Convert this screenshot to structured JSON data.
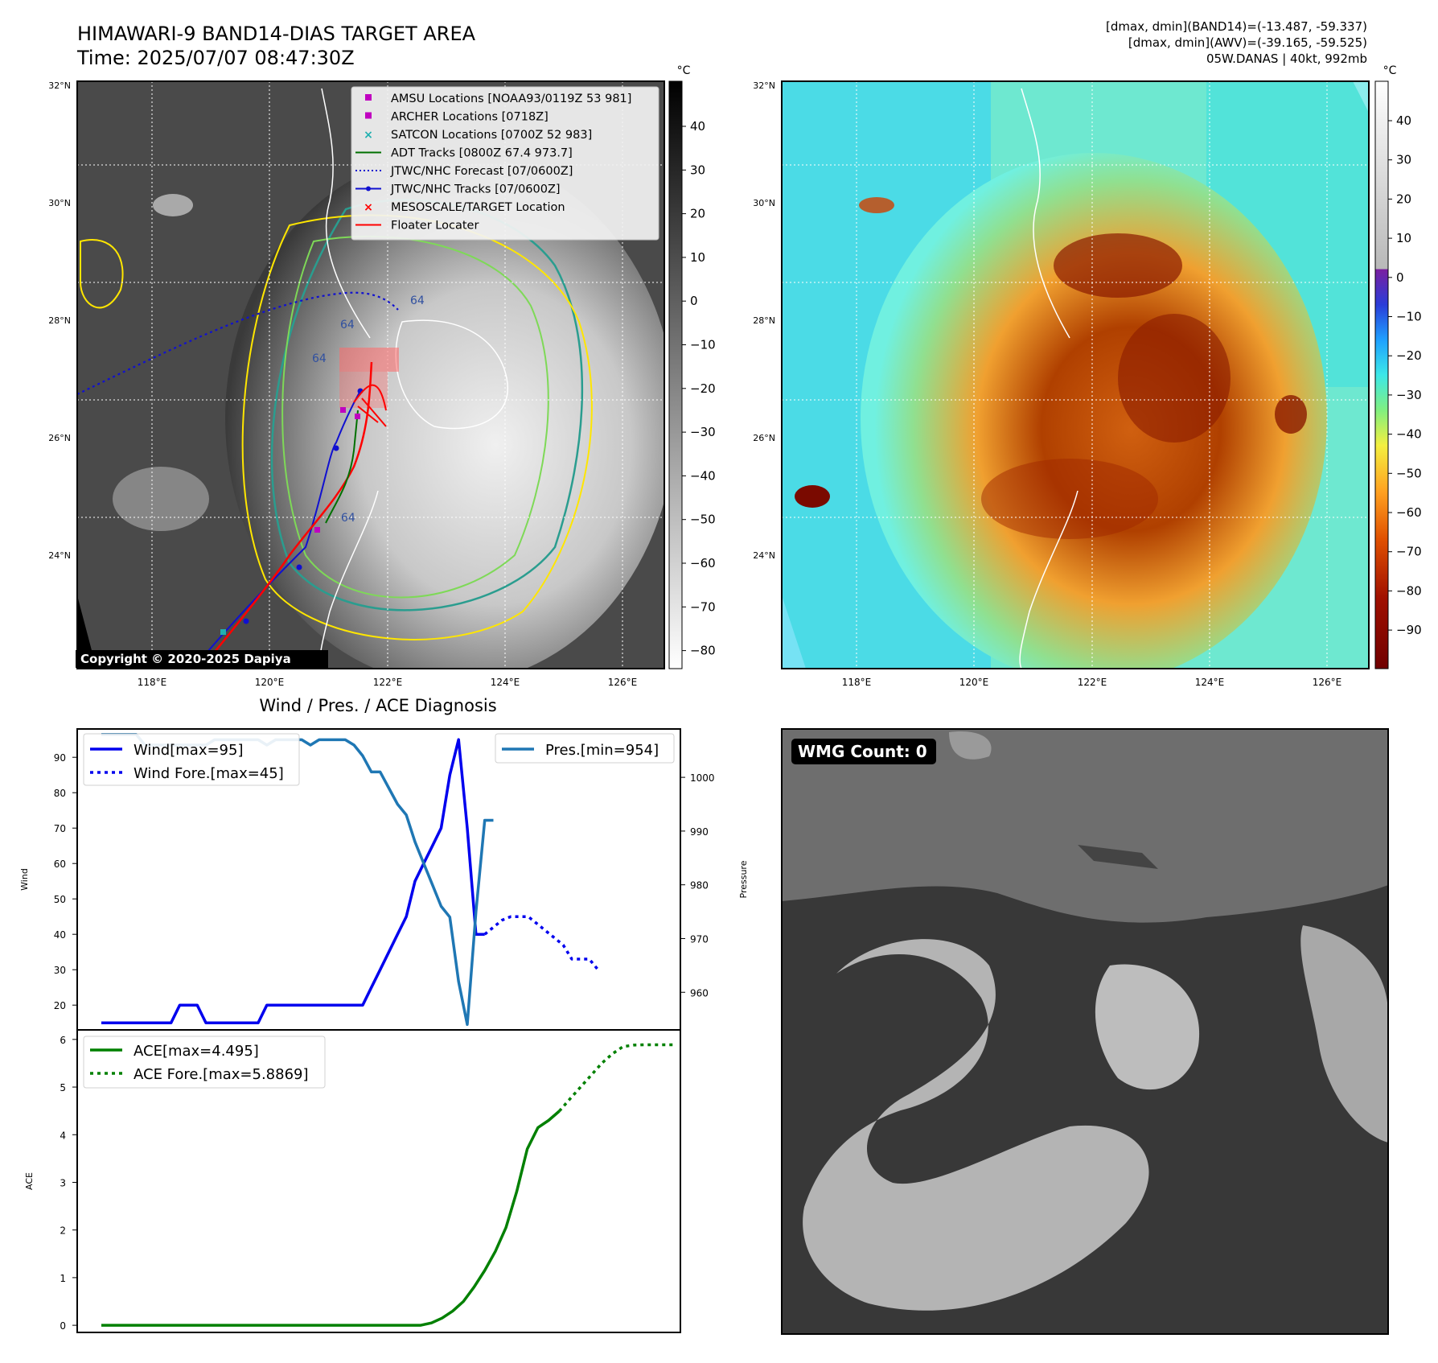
{
  "header": {
    "title": "HIMAWARI-9 BAND14-DIAS TARGET AREA",
    "time": "Time: 2025/07/07 08:47:30Z",
    "right_line1": "[dmax, dmin](BAND14)=(-13.487, -59.337)",
    "right_line2": "[dmax, dmin](AWV)=(-39.165, -59.525)",
    "right_line3": "05W.DANAS | 40kt, 992mb"
  },
  "map": {
    "lat_labels": [
      "32°N",
      "30°N",
      "28°N",
      "26°N",
      "24°N"
    ],
    "lon_labels": [
      "118°E",
      "120°E",
      "122°E",
      "124°E",
      "126°E"
    ],
    "copyright": "Copyright © 2020-2025 Dapiya",
    "legend": [
      {
        "label": "AMSU Locations [NOAA93/0119Z 53 981]",
        "color": "#c000c0",
        "kind": "square"
      },
      {
        "label": "ARCHER Locations [0718Z]",
        "color": "#c000c0",
        "kind": "square"
      },
      {
        "label": "SATCON Locations [0700Z 52 983]",
        "color": "#20b0b0",
        "kind": "x"
      },
      {
        "label": "ADT Tracks [0800Z 67.4 973.7]",
        "color": "#007000",
        "kind": "line"
      },
      {
        "label": "JTWC/NHC Forecast [07/0600Z]",
        "color": "#1010d0",
        "kind": "dotted"
      },
      {
        "label": "JTWC/NHC Tracks [07/0600Z]",
        "color": "#1010d0",
        "kind": "line-dot"
      },
      {
        "label": "MESOSCALE/TARGET Location",
        "color": "#ff0000",
        "kind": "x"
      },
      {
        "label": "Floater Locater",
        "color": "#ff0000",
        "kind": "line"
      }
    ],
    "contour_labels": [
      "64",
      "64",
      "64",
      "64"
    ],
    "unit": "°C",
    "left_cbar_ticks": [
      "40",
      "30",
      "20",
      "10",
      "0",
      "−10",
      "−20",
      "−30",
      "−40",
      "−50",
      "−60",
      "−70",
      "−80"
    ],
    "right_cbar_ticks": [
      "40",
      "30",
      "20",
      "10",
      "0",
      "−10",
      "−20",
      "−30",
      "−40",
      "−50",
      "−60",
      "−70",
      "−80",
      "−90"
    ]
  },
  "diag": {
    "title": "Wind / Pres. / ACE Diagnosis",
    "wind_ylabel": "Wind",
    "pres_ylabel": "Pressure",
    "ace_ylabel": "ACE",
    "legend_wind": "Wind[max=95]",
    "legend_wind_fore": "Wind Fore.[max=45]",
    "legend_pres": "Pres.[min=954]",
    "legend_ace": "ACE[max=4.495]",
    "legend_ace_fore": "ACE Fore.[max=5.8869]"
  },
  "wmg": {
    "label": "WMG Count: 0"
  },
  "chart_data": [
    {
      "type": "line",
      "name_key": "wind_pressure",
      "x": [
        0,
        1,
        2,
        3,
        4,
        5,
        6,
        7,
        8,
        9,
        10,
        11,
        12,
        13,
        14,
        15,
        16,
        17,
        18,
        19,
        20,
        21,
        22,
        23,
        24,
        25,
        26,
        27,
        28,
        29,
        30,
        31,
        32,
        33,
        34,
        35,
        36,
        37,
        38,
        39,
        40,
        41,
        42,
        43,
        44,
        45,
        46,
        47,
        48,
        49,
        50,
        51,
        52,
        53,
        54,
        55,
        56,
        57,
        58,
        59,
        60,
        61,
        62,
        63,
        64,
        65,
        66
      ],
      "series": [
        {
          "name": "Wind[max=95]",
          "axis": "left",
          "style": "solid",
          "color": "#0000ee",
          "values": [
            15,
            15,
            15,
            15,
            15,
            15,
            15,
            15,
            15,
            20,
            20,
            20,
            15,
            15,
            15,
            15,
            15,
            15,
            15,
            20,
            20,
            20,
            20,
            20,
            20,
            20,
            20,
            20,
            20,
            20,
            20,
            25,
            30,
            35,
            40,
            45,
            55,
            60,
            65,
            70,
            85,
            95,
            70,
            40,
            40,
            null,
            null,
            null,
            null,
            null,
            null,
            null,
            null,
            null,
            null,
            null,
            null,
            null,
            null,
            null,
            null,
            null,
            null,
            null,
            null,
            null,
            null
          ]
        },
        {
          "name": "Wind Fore.[max=45]",
          "axis": "left",
          "style": "dotted",
          "color": "#0000ee",
          "values": [
            null,
            null,
            null,
            null,
            null,
            null,
            null,
            null,
            null,
            null,
            null,
            null,
            null,
            null,
            null,
            null,
            null,
            null,
            null,
            null,
            null,
            null,
            null,
            null,
            null,
            null,
            null,
            null,
            null,
            null,
            null,
            null,
            null,
            null,
            null,
            null,
            null,
            null,
            null,
            null,
            null,
            null,
            null,
            null,
            40,
            42,
            44,
            45,
            45,
            45,
            43,
            41,
            39,
            37,
            33,
            33,
            33,
            30,
            null,
            null,
            null,
            null,
            null,
            null,
            null,
            null,
            null
          ]
        },
        {
          "name": "Pres.[min=954]",
          "axis": "right",
          "style": "solid",
          "color": "#1f77b4",
          "values": [
            1008,
            1008,
            1008,
            1008,
            1008,
            1006,
            1006,
            1006,
            1006,
            1006,
            1006,
            1006,
            1006,
            1007,
            1007,
            1007,
            1007,
            1007,
            1007,
            1006,
            1007,
            1007,
            1007,
            1007,
            1006,
            1007,
            1007,
            1007,
            1007,
            1006,
            1004,
            1001,
            1001,
            998,
            995,
            993,
            988,
            984,
            980,
            976,
            974,
            962,
            954,
            975,
            992,
            992,
            null,
            null,
            null,
            null,
            null,
            null,
            null,
            null,
            null,
            null,
            null,
            null,
            null,
            null,
            null,
            null,
            null,
            null,
            null,
            null,
            null
          ]
        }
      ],
      "ylim_left": [
        13,
        98
      ],
      "yticks_left": [
        20,
        30,
        40,
        50,
        60,
        70,
        80,
        90
      ],
      "ylim_right": [
        953,
        1009
      ],
      "yticks_right": [
        960,
        970,
        980,
        990,
        1000
      ]
    },
    {
      "type": "line",
      "name_key": "ace",
      "series": [
        {
          "name": "ACE[max=4.495]",
          "style": "solid",
          "color": "#008000",
          "values": [
            0,
            0,
            0,
            0,
            0,
            0,
            0,
            0,
            0,
            0,
            0,
            0,
            0,
            0,
            0,
            0,
            0,
            0,
            0,
            0,
            0,
            0,
            0,
            0,
            0,
            0,
            0,
            0,
            0,
            0,
            0,
            0.05,
            0.15,
            0.3,
            0.5,
            0.8,
            1.15,
            1.55,
            2.05,
            2.8,
            3.7,
            4.15,
            4.3,
            4.495
          ]
        },
        {
          "name": "ACE Fore.[max=5.8869]",
          "style": "dotted",
          "color": "#008000",
          "values_offset": 43,
          "values": [
            4.495,
            4.75,
            5.0,
            5.25,
            5.5,
            5.7,
            5.85,
            5.88,
            5.8869,
            5.8869,
            5.8869,
            5.8869
          ]
        }
      ],
      "ylim": [
        -0.15,
        6.2
      ],
      "yticks": [
        0,
        1,
        2,
        3,
        4,
        5,
        6
      ]
    }
  ]
}
